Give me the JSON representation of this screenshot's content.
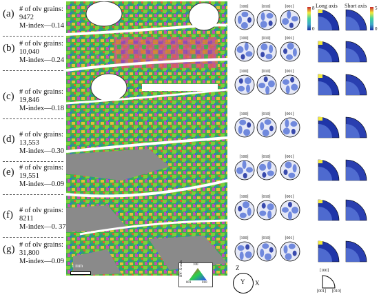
{
  "panels": [
    {
      "label": "(a)",
      "grains_title": "# of olv grains:",
      "grains": "9472",
      "mindex": "M-index—0.14"
    },
    {
      "label": "(b)",
      "grains_title": "# of olv grains:",
      "grains": "10,040",
      "mindex": "M-index—0.24"
    },
    {
      "label": "(c)",
      "grains_title": "# of olv grains:",
      "grains": "19,846",
      "mindex": "M-index—0.18"
    },
    {
      "label": "(d)",
      "grains_title": "# of olv grains:",
      "grains": "13,553",
      "mindex": "M-index—0.30"
    },
    {
      "label": "(e)",
      "grains_title": "# of olv grains:",
      "grains": "19,551",
      "mindex": "M-index—0.09"
    },
    {
      "label": "(f)",
      "grains_title": "# of olv grains:",
      "grains": "8211",
      "mindex": "M-index—0. 37"
    },
    {
      "label": "(g)",
      "grains_title": "# of olv grains:",
      "grains": "31,800",
      "mindex": "M-index—0.09"
    }
  ],
  "pole_labels": [
    "[100]",
    "[010]",
    "[001]"
  ],
  "axis_headers": {
    "long": "Long axis",
    "short": "Short axis"
  },
  "colorbar_left": {
    "max": "8",
    "min": "0"
  },
  "colorbar_right": {
    "max": "5",
    "min": "0"
  },
  "scale_bar": "1 mm",
  "ipf_legend": {
    "title": "IPF X-axis",
    "top": "100",
    "left": "001",
    "right": "010"
  },
  "ref_frame": {
    "z": "Z",
    "y": "Y",
    "x": "X"
  },
  "sector_legend": {
    "top": "[100]",
    "left": "[001]",
    "right": "[010]"
  },
  "colors": {
    "high": "#f2ea3a",
    "mid": "#3fa6c9",
    "low": "#1a2ea0",
    "bg": "#e6e9f7"
  }
}
